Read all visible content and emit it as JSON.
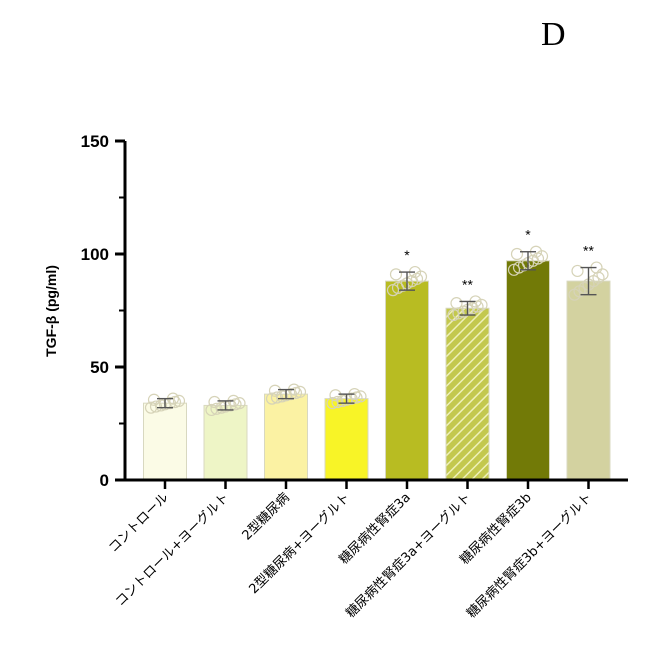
{
  "panel_label": "D",
  "chart_data": {
    "type": "bar",
    "title": "",
    "xlabel": "",
    "ylabel": "TGF-β (pg/ml)",
    "ylim": [
      0,
      150
    ],
    "yticks": [
      0,
      50,
      100,
      150
    ],
    "categories": [
      "コントロール",
      "コントロール+ヨーグルト",
      "2型糖尿病",
      "2型糖尿病+ヨーグルト",
      "糖尿病性腎症3a",
      "糖尿病性腎症3a+ヨーグルト",
      "糖尿病性腎症3b",
      "糖尿病性腎症3b+ヨーグルト"
    ],
    "values": [
      34,
      33,
      38,
      36,
      88,
      76,
      97,
      88
    ],
    "errors": [
      2,
      2,
      2,
      2,
      4,
      3,
      4,
      6
    ],
    "significance": [
      "",
      "",
      "",
      "",
      "*",
      "**",
      "*",
      "**"
    ],
    "colors": [
      "#fbfbe6",
      "#eef5c6",
      "#fbf2a3",
      "#f8f427",
      "#b8bc22",
      "#c3c84e",
      "#727a07",
      "#d3d2a0"
    ],
    "hatched": [
      false,
      false,
      false,
      false,
      false,
      true,
      false,
      false
    ]
  }
}
